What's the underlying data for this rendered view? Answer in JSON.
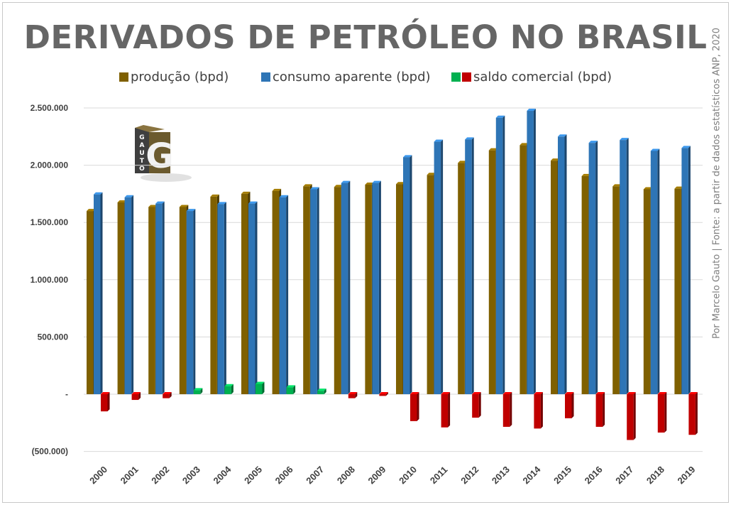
{
  "title": "DERIVADOS DE PETRÓLEO NO BRASIL",
  "source": "Por Marcelo Gauto  |  Fonte: a partir de dados estatísticos ANP, 2020",
  "logo": {
    "letters": "GAUTO",
    "mark": "G"
  },
  "colors": {
    "producao": "#7F6000",
    "consumo": "#2E75B6",
    "saldo_pos": "#00B050",
    "saldo_neg": "#C00000",
    "grid": "#D9D9D9",
    "tick": "#404040"
  },
  "chart_data": {
    "type": "bar",
    "title": "DERIVADOS DE PETRÓLEO NO BRASIL",
    "xlabel": "",
    "ylabel": "",
    "categories": [
      "2000",
      "2001",
      "2002",
      "2003",
      "2004",
      "2005",
      "2006",
      "2007",
      "2008",
      "2009",
      "2010",
      "2011",
      "2012",
      "2013",
      "2014",
      "2015",
      "2016",
      "2017",
      "2018",
      "2019"
    ],
    "series": [
      {
        "name": "produção (bpd)",
        "values": [
          1600000,
          1675000,
          1635000,
          1635000,
          1725000,
          1750000,
          1775000,
          1815000,
          1810000,
          1830000,
          1835000,
          1915000,
          2020000,
          2130000,
          2175000,
          2040000,
          1905000,
          1815000,
          1790000,
          1795000
        ]
      },
      {
        "name": "consumo aparente (bpd)",
        "values": [
          1745000,
          1720000,
          1665000,
          1600000,
          1660000,
          1665000,
          1720000,
          1790000,
          1845000,
          1845000,
          2070000,
          2205000,
          2225000,
          2415000,
          2475000,
          2250000,
          2195000,
          2220000,
          2125000,
          2150000
        ]
      },
      {
        "name": "saldo comercial (bpd)",
        "values": [
          -150000,
          -50000,
          -35000,
          35000,
          70000,
          90000,
          60000,
          30000,
          -35000,
          -15000,
          -235000,
          -290000,
          -205000,
          -285000,
          -300000,
          -210000,
          -285000,
          -400000,
          -335000,
          -355000
        ]
      }
    ],
    "ylim": [
      -500000,
      2500000
    ],
    "yticks": [
      -500000,
      0,
      500000,
      1000000,
      1500000,
      2000000,
      2500000
    ],
    "ytick_labels": [
      "(500.000)",
      "-",
      "500.000",
      "1.000.000",
      "1.500.000",
      "2.000.000",
      "2.500.000"
    ],
    "grid": true,
    "legend": "top"
  }
}
